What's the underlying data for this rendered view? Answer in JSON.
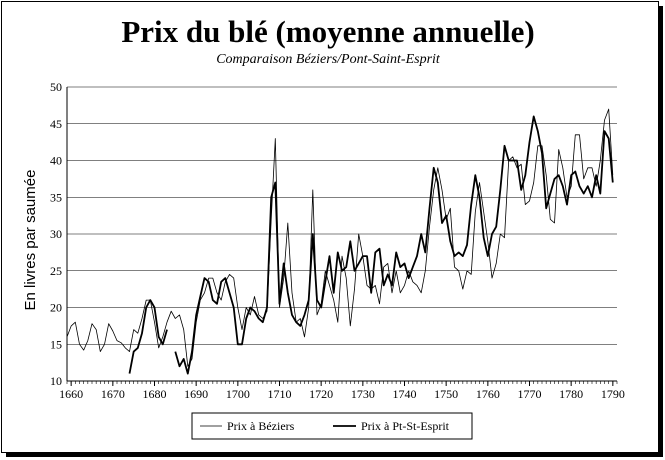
{
  "chart_data": {
    "type": "line",
    "title": "Prix du blé (moyenne annuelle)",
    "subtitle": "Comparaison Béziers/Pont-Saint-Esprit",
    "ylabel": "En livres par saumée",
    "xlabel": "",
    "xlim": [
      1659,
      1791
    ],
    "ylim": [
      10,
      50
    ],
    "xticks": [
      1660,
      1670,
      1680,
      1690,
      1700,
      1710,
      1720,
      1730,
      1740,
      1750,
      1760,
      1770,
      1780,
      1790
    ],
    "yticks": [
      10,
      15,
      20,
      25,
      30,
      35,
      40,
      45,
      50
    ],
    "grid": "horizontal",
    "legend_position": "bottom",
    "series": [
      {
        "name": "Prix à Béziers",
        "style": "thin",
        "points": [
          [
            1659,
            16.0
          ],
          [
            1660,
            17.5
          ],
          [
            1661,
            18.0
          ],
          [
            1662,
            15.0
          ],
          [
            1663,
            14.2
          ],
          [
            1664,
            15.5
          ],
          [
            1665,
            17.8
          ],
          [
            1666,
            17.0
          ],
          [
            1667,
            14.0
          ],
          [
            1668,
            15.0
          ],
          [
            1669,
            17.8
          ],
          [
            1670,
            16.8
          ],
          [
            1671,
            15.5
          ],
          [
            1672,
            15.2
          ],
          [
            1673,
            14.5
          ],
          [
            1674,
            14.0
          ],
          [
            1675,
            17.0
          ],
          [
            1676,
            16.5
          ],
          [
            1677,
            18.5
          ],
          [
            1678,
            21.0
          ],
          [
            1679,
            21.0
          ],
          [
            1680,
            18.0
          ],
          [
            1681,
            14.5
          ],
          [
            1682,
            16.0
          ],
          [
            1683,
            18.0
          ],
          [
            1684,
            19.5
          ],
          [
            1685,
            18.5
          ],
          [
            1686,
            19.0
          ],
          [
            1687,
            17.0
          ],
          [
            1688,
            12.0
          ],
          [
            1689,
            13.0
          ],
          [
            1690,
            18.0
          ],
          [
            1691,
            21.0
          ],
          [
            1692,
            22.0
          ],
          [
            1693,
            24.0
          ],
          [
            1694,
            24.0
          ],
          [
            1695,
            22.0
          ],
          [
            1696,
            21.0
          ],
          [
            1697,
            23.5
          ],
          [
            1698,
            24.5
          ],
          [
            1699,
            24.0
          ],
          [
            1700,
            20.0
          ],
          [
            1701,
            17.0
          ],
          [
            1702,
            20.0
          ],
          [
            1703,
            19.0
          ],
          [
            1704,
            21.5
          ],
          [
            1705,
            19.0
          ],
          [
            1706,
            18.5
          ],
          [
            1707,
            19.5
          ],
          [
            1708,
            32.0
          ],
          [
            1709,
            43.0
          ],
          [
            1710,
            20.0
          ],
          [
            1711,
            24.0
          ],
          [
            1712,
            31.5
          ],
          [
            1713,
            22.0
          ],
          [
            1714,
            18.0
          ],
          [
            1715,
            18.5
          ],
          [
            1716,
            16.0
          ],
          [
            1717,
            20.0
          ],
          [
            1718,
            36.0
          ],
          [
            1719,
            19.0
          ],
          [
            1720,
            20.5
          ],
          [
            1721,
            25.0
          ],
          [
            1722,
            23.0
          ],
          [
            1723,
            21.0
          ],
          [
            1724,
            18.0
          ],
          [
            1725,
            27.0
          ],
          [
            1726,
            24.0
          ],
          [
            1727,
            17.5
          ],
          [
            1728,
            22.5
          ],
          [
            1729,
            30.0
          ],
          [
            1730,
            27.0
          ],
          [
            1731,
            23.0
          ],
          [
            1732,
            22.5
          ],
          [
            1733,
            23.0
          ],
          [
            1734,
            20.5
          ],
          [
            1735,
            25.5
          ],
          [
            1736,
            26.0
          ],
          [
            1737,
            22.0
          ],
          [
            1738,
            25.0
          ],
          [
            1739,
            22.0
          ],
          [
            1740,
            23.0
          ],
          [
            1741,
            25.0
          ],
          [
            1742,
            23.5
          ],
          [
            1743,
            23.0
          ],
          [
            1744,
            22.0
          ],
          [
            1745,
            25.0
          ],
          [
            1746,
            31.0
          ],
          [
            1747,
            36.0
          ],
          [
            1748,
            39.0
          ],
          [
            1749,
            36.0
          ],
          [
            1750,
            32.0
          ],
          [
            1751,
            33.5
          ],
          [
            1752,
            25.5
          ],
          [
            1753,
            25.0
          ],
          [
            1754,
            22.5
          ],
          [
            1755,
            25.0
          ],
          [
            1756,
            24.5
          ],
          [
            1757,
            33.0
          ],
          [
            1758,
            37.0
          ],
          [
            1759,
            33.0
          ],
          [
            1760,
            29.0
          ],
          [
            1761,
            24.0
          ],
          [
            1762,
            26.0
          ],
          [
            1763,
            30.0
          ],
          [
            1764,
            29.5
          ],
          [
            1765,
            40.0
          ],
          [
            1766,
            40.5
          ],
          [
            1767,
            39.0
          ],
          [
            1768,
            39.5
          ],
          [
            1769,
            34.0
          ],
          [
            1770,
            34.5
          ],
          [
            1771,
            37.0
          ],
          [
            1772,
            42.0
          ],
          [
            1773,
            42.0
          ],
          [
            1774,
            38.0
          ],
          [
            1775,
            32.0
          ],
          [
            1776,
            31.5
          ],
          [
            1777,
            41.5
          ],
          [
            1778,
            39.0
          ],
          [
            1779,
            35.0
          ],
          [
            1780,
            36.5
          ],
          [
            1781,
            43.5
          ],
          [
            1782,
            43.5
          ],
          [
            1783,
            37.5
          ],
          [
            1784,
            39.0
          ],
          [
            1785,
            39.0
          ],
          [
            1786,
            36.5
          ],
          [
            1787,
            40.0
          ],
          [
            1788,
            45.5
          ],
          [
            1789,
            47.0
          ],
          [
            1790,
            38.0
          ]
        ]
      },
      {
        "name": "Prix à Pt-St-Esprit",
        "style": "thick",
        "points": [
          [
            1674,
            11.0
          ],
          [
            1675,
            14.0
          ],
          [
            1676,
            14.5
          ],
          [
            1677,
            16.5
          ],
          [
            1678,
            20.0
          ],
          [
            1679,
            21.0
          ],
          [
            1680,
            20.0
          ],
          [
            1681,
            16.0
          ],
          [
            1682,
            15.0
          ],
          [
            1683,
            17.0
          ],
          null,
          [
            1685,
            14.0
          ],
          [
            1686,
            12.0
          ],
          [
            1687,
            13.0
          ],
          [
            1688,
            11.0
          ],
          [
            1689,
            14.0
          ],
          [
            1690,
            19.0
          ],
          [
            1691,
            21.5
          ],
          [
            1692,
            24.0
          ],
          [
            1693,
            23.5
          ],
          [
            1694,
            21.0
          ],
          [
            1695,
            20.5
          ],
          [
            1696,
            23.5
          ],
          [
            1697,
            24.0
          ],
          [
            1698,
            22.0
          ],
          [
            1699,
            20.0
          ],
          [
            1700,
            15.0
          ],
          [
            1701,
            15.0
          ],
          [
            1702,
            18.5
          ],
          [
            1703,
            20.0
          ],
          [
            1704,
            19.5
          ],
          [
            1705,
            18.5
          ],
          [
            1706,
            18.0
          ],
          [
            1707,
            20.0
          ],
          [
            1708,
            35.0
          ],
          [
            1709,
            37.0
          ],
          [
            1710,
            20.5
          ],
          [
            1711,
            26.0
          ],
          [
            1712,
            22.0
          ],
          [
            1713,
            19.0
          ],
          [
            1714,
            18.0
          ],
          [
            1715,
            17.5
          ],
          [
            1716,
            19.0
          ],
          [
            1717,
            21.0
          ],
          [
            1718,
            30.0
          ],
          [
            1719,
            21.0
          ],
          [
            1720,
            20.0
          ],
          [
            1721,
            23.5
          ],
          [
            1722,
            27.0
          ],
          [
            1723,
            22.0
          ],
          [
            1724,
            27.5
          ],
          [
            1725,
            25.0
          ],
          [
            1726,
            25.5
          ],
          [
            1727,
            29.0
          ],
          [
            1728,
            25.0
          ],
          [
            1729,
            26.0
          ],
          [
            1730,
            27.0
          ],
          [
            1731,
            27.0
          ],
          [
            1732,
            22.0
          ],
          [
            1733,
            27.5
          ],
          [
            1734,
            28.0
          ],
          [
            1735,
            23.0
          ],
          [
            1736,
            24.5
          ],
          [
            1737,
            23.0
          ],
          [
            1738,
            27.5
          ],
          [
            1739,
            25.5
          ],
          [
            1740,
            26.0
          ],
          [
            1741,
            24.0
          ],
          [
            1742,
            25.5
          ],
          [
            1743,
            27.0
          ],
          [
            1744,
            30.0
          ],
          [
            1745,
            27.5
          ],
          [
            1746,
            33.5
          ],
          [
            1747,
            39.0
          ],
          [
            1748,
            37.0
          ],
          [
            1749,
            31.5
          ],
          [
            1750,
            32.5
          ],
          [
            1751,
            29.0
          ],
          [
            1752,
            27.0
          ],
          [
            1753,
            27.5
          ],
          [
            1754,
            27.0
          ],
          [
            1755,
            28.5
          ],
          [
            1756,
            34.0
          ],
          [
            1757,
            38.0
          ],
          [
            1758,
            35.0
          ],
          [
            1759,
            29.5
          ],
          [
            1760,
            27.0
          ],
          [
            1761,
            30.0
          ],
          [
            1762,
            31.0
          ],
          [
            1763,
            36.0
          ],
          [
            1764,
            42.0
          ],
          [
            1765,
            40.0
          ],
          [
            1766,
            40.0
          ],
          [
            1767,
            40.0
          ],
          [
            1768,
            36.0
          ],
          [
            1769,
            38.0
          ],
          [
            1770,
            42.5
          ],
          [
            1771,
            46.0
          ],
          [
            1772,
            44.0
          ],
          [
            1773,
            41.0
          ],
          [
            1774,
            33.5
          ],
          [
            1775,
            35.5
          ],
          [
            1776,
            37.5
          ],
          [
            1777,
            38.0
          ],
          [
            1778,
            36.5
          ],
          [
            1779,
            34.0
          ],
          [
            1780,
            38.0
          ],
          [
            1781,
            38.5
          ],
          [
            1782,
            36.5
          ],
          [
            1783,
            35.5
          ],
          [
            1784,
            36.5
          ],
          [
            1785,
            35.0
          ],
          [
            1786,
            38.0
          ],
          [
            1787,
            35.5
          ],
          [
            1788,
            44.0
          ],
          [
            1789,
            43.0
          ],
          [
            1790,
            37.0
          ]
        ]
      }
    ]
  }
}
